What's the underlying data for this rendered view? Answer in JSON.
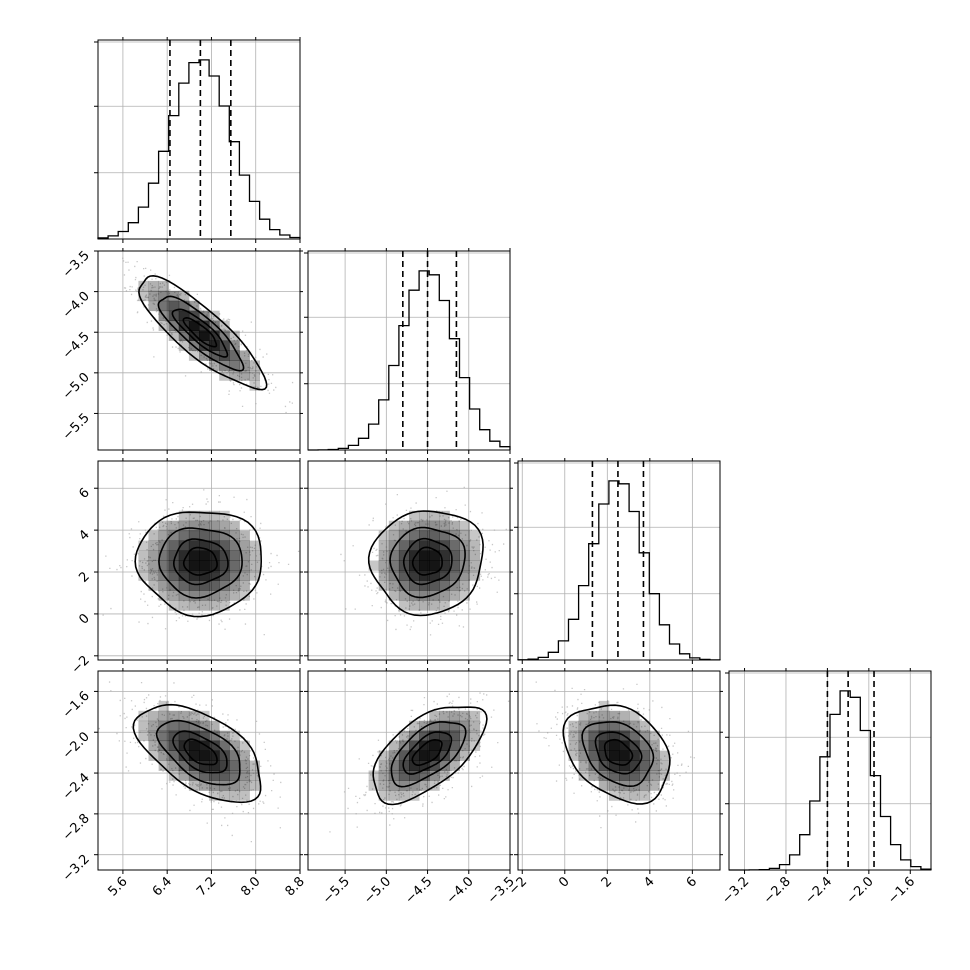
{
  "chart_data": {
    "type": "corner",
    "grid": true,
    "parameters": [
      {
        "range": [
          5.15,
          8.8
        ],
        "ticks": [
          5.6,
          6.4,
          7.2,
          8.0,
          8.8
        ],
        "tick_labels": [
          "5.6",
          "6.4",
          "7.2",
          "8.0",
          "8.8"
        ],
        "quantiles": [
          6.45,
          7.0,
          7.55
        ],
        "mean": 7.0,
        "sd": 0.55
      },
      {
        "range": [
          -5.95,
          -3.5
        ],
        "ticks": [
          -5.5,
          -5.0,
          -4.5,
          -4.0,
          -3.5
        ],
        "tick_labels": [
          "−5.5",
          "−5.0",
          "−4.5",
          "−4.0",
          "−3.5"
        ],
        "quantiles": [
          -4.8,
          -4.5,
          -4.15
        ],
        "mean": -4.5,
        "sd": 0.33
      },
      {
        "range": [
          -2.2,
          7.3
        ],
        "ticks": [
          -2,
          0,
          2,
          4,
          6
        ],
        "tick_labels": [
          "−2",
          "0",
          "2",
          "4",
          "6"
        ],
        "quantiles": [
          1.3,
          2.5,
          3.7
        ],
        "mean": 2.5,
        "sd": 1.2
      },
      {
        "range": [
          -3.35,
          -1.4
        ],
        "ticks": [
          -3.2,
          -2.8,
          -2.4,
          -2.0,
          -1.6
        ],
        "tick_labels": [
          "−3.2",
          "−2.8",
          "−2.4",
          "−2.0",
          "−1.6"
        ],
        "quantiles": [
          -2.4,
          -2.2,
          -1.95
        ],
        "mean": -2.2,
        "sd": 0.23
      }
    ],
    "correlations": [
      {
        "row": 1,
        "col": 0,
        "rho": -0.85
      },
      {
        "row": 2,
        "col": 0,
        "rho": 0.0
      },
      {
        "row": 2,
        "col": 1,
        "rho": 0.05
      },
      {
        "row": 3,
        "col": 0,
        "rho": -0.55
      },
      {
        "row": 3,
        "col": 1,
        "rho": 0.6
      },
      {
        "row": 3,
        "col": 2,
        "rho": -0.3
      }
    ],
    "contour_levels_sigma": [
      0.5,
      1.0,
      1.5,
      2.0
    ],
    "colors": {
      "scatter": "#9a9a9a",
      "density": "#000000",
      "line": "#000000",
      "grid": "#b0b0b0"
    }
  }
}
